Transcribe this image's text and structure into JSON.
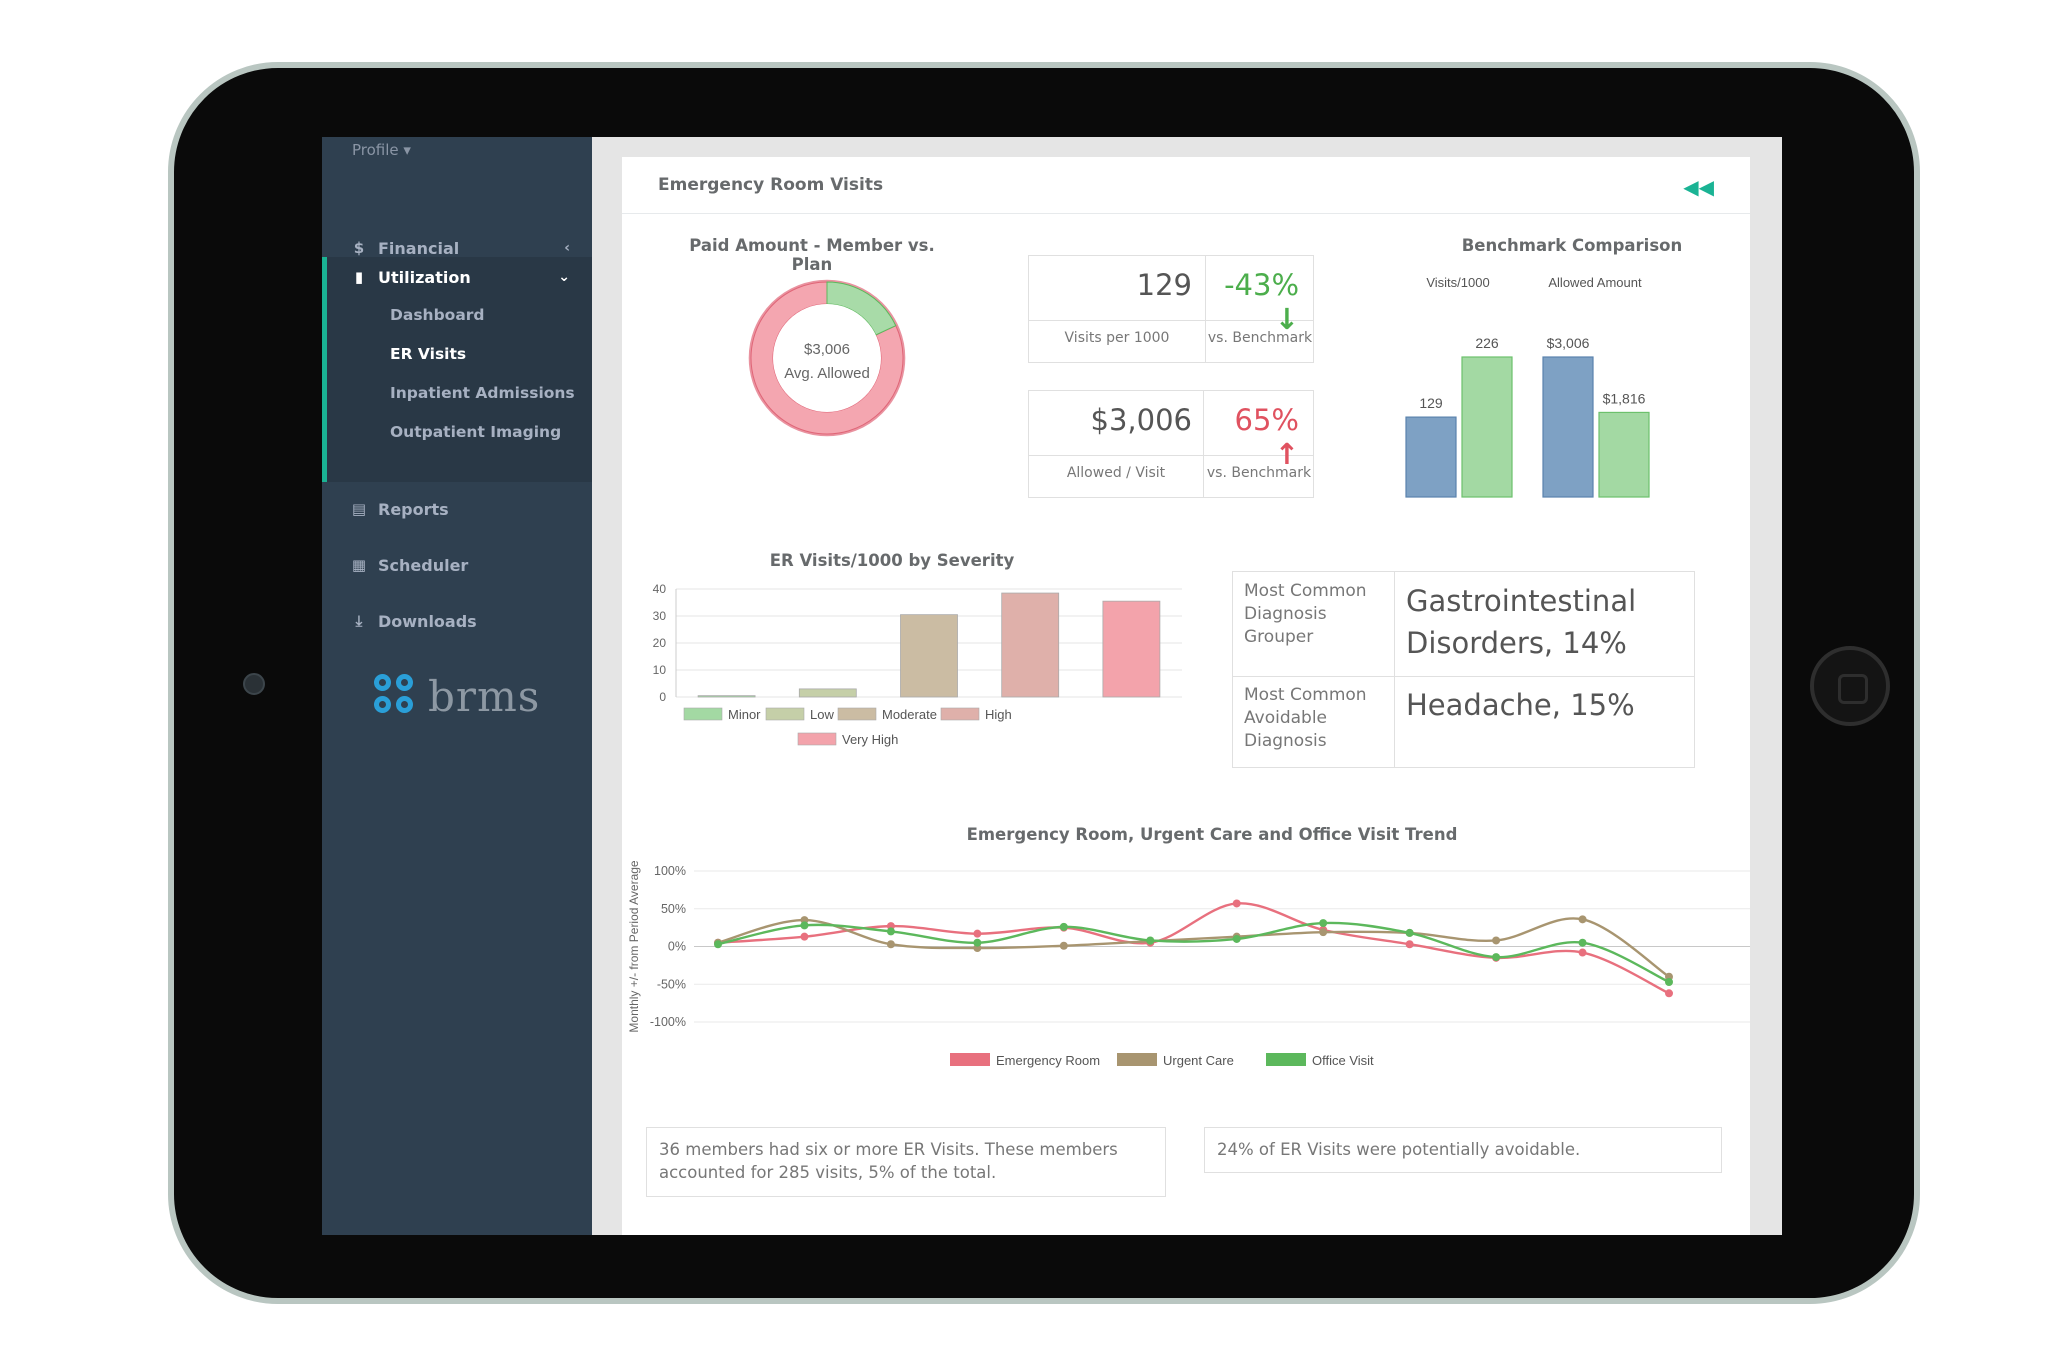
{
  "sidebar": {
    "profile": "Profile",
    "financial": "Financial",
    "utilization": "Utilization",
    "sub_items": [
      "Dashboard",
      "ER Visits",
      "Inpatient Admissions",
      "Outpatient Imaging"
    ],
    "reports": "Reports",
    "scheduler": "Scheduler",
    "downloads": "Downloads",
    "logo_text": "brms"
  },
  "panel": {
    "title": "Emergency Room Visits",
    "collapse_icon": "double-chevron-left-icon"
  },
  "donut": {
    "title": "Paid Amount - Member vs. Plan",
    "center_value": "$3,006",
    "center_label": "Avg. Allowed",
    "member_share": 0.18,
    "colors": {
      "member": "#a8dba8",
      "plan": "#f4a6b0"
    }
  },
  "kpis": [
    {
      "value": "129",
      "label": "Visits per 1000",
      "delta": "-43%",
      "delta_label": "vs. Benchmark",
      "direction": "down",
      "color": "#4cae4c"
    },
    {
      "value": "$3,006",
      "label": "Allowed / Visit",
      "delta": "65%",
      "delta_label": "vs. Benchmark",
      "direction": "up",
      "color": "#e05260"
    }
  ],
  "benchmark": {
    "title": "Benchmark Comparison",
    "groups": [
      {
        "label": "Visits/1000",
        "values": [
          129,
          226
        ],
        "value_labels": [
          "129",
          "226"
        ],
        "max": 226
      },
      {
        "label": "Allowed Amount",
        "values": [
          3006,
          1816
        ],
        "value_labels": [
          "$3,006",
          "$1,816"
        ],
        "max": 3006
      }
    ],
    "colors": [
      "#7ea1c4",
      "#a3d9a3"
    ]
  },
  "diagnosis": {
    "grouper_label": "Most Common Diagnosis Grouper",
    "grouper_value": "Gastrointestinal Disorders, 14%",
    "avoidable_label": "Most Common Avoidable Diagnosis",
    "avoidable_value": "Headache, 15%"
  },
  "notes": [
    "36 members had six or more ER Visits. These members accounted for 285 visits, 5% of the total.",
    "24% of ER Visits were potentially avoidable."
  ],
  "chart_data": [
    {
      "type": "bar",
      "title": "ER Visits/1000 by Severity",
      "categories": [
        "Minor",
        "Low",
        "Moderate",
        "High",
        "Very High"
      ],
      "values": [
        0.5,
        3,
        30.5,
        38.5,
        35.5
      ],
      "ylim": [
        0,
        40
      ],
      "yticks": [
        "0",
        "10",
        "20",
        "30",
        "40"
      ],
      "colors": [
        "#a3d9a3",
        "#c5cfa8",
        "#cbbca3",
        "#dfb0aa",
        "#f3a3ab"
      ],
      "legend": [
        "Minor",
        "Low",
        "Moderate",
        "High",
        "Very High"
      ]
    },
    {
      "type": "line",
      "title": "Emergency Room, Urgent Care and Office Visit Trend",
      "ylabel": "Monthly +/- from Period Average",
      "ylim": [
        -100,
        100
      ],
      "yticks": [
        "100%",
        "50%",
        "0%",
        "-50%",
        "-100%"
      ],
      "x": [
        1,
        2,
        3,
        4,
        5,
        6,
        7,
        8,
        9,
        10,
        11,
        12
      ],
      "series": [
        {
          "name": "Emergency Room",
          "color": "#e8707e",
          "values": [
            5,
            13,
            27,
            17,
            25,
            5,
            57,
            22,
            3,
            -15,
            -8,
            -62
          ]
        },
        {
          "name": "Urgent Care",
          "color": "#a89570",
          "values": [
            5,
            35,
            3,
            -2,
            1,
            7,
            13,
            19,
            18,
            8,
            36,
            -40
          ]
        },
        {
          "name": "Office Visit",
          "color": "#5cb85c",
          "values": [
            3,
            28,
            20,
            5,
            26,
            8,
            10,
            31,
            18,
            -14,
            5,
            -47
          ]
        }
      ]
    }
  ]
}
